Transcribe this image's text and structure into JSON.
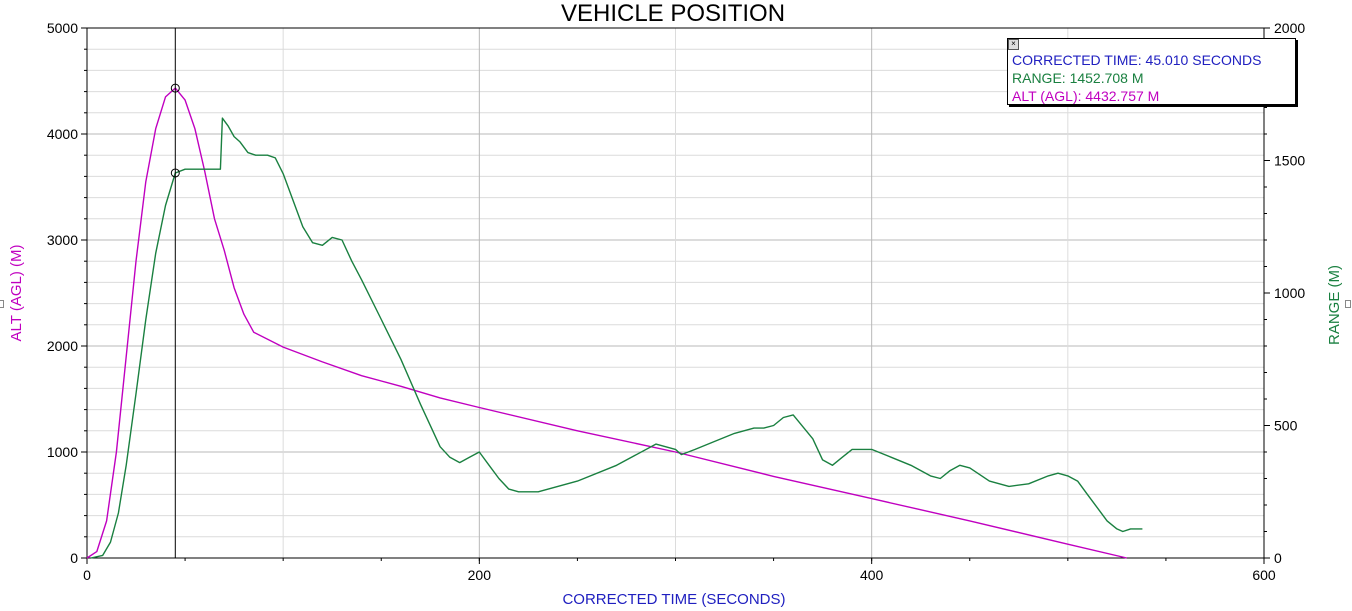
{
  "chart_data": {
    "type": "line",
    "title": "VEHICLE POSITION",
    "xlabel": "CORRECTED TIME (SECONDS)",
    "ylabel": "ALT (AGL) (M)",
    "y2label": "RANGE (M)",
    "xlim": [
      0,
      600
    ],
    "ylim": [
      0,
      5000
    ],
    "y2lim": [
      0,
      2000
    ],
    "x_ticks": [
      "0",
      "200",
      "400",
      "600"
    ],
    "y_ticks": [
      "0",
      "1000",
      "2000",
      "3000",
      "4000",
      "5000"
    ],
    "y2_ticks": [
      "0",
      "500",
      "1000",
      "1500",
      "2000"
    ],
    "grid": true,
    "cursor_x": 45.01,
    "series": [
      {
        "name": "ALT (AGL) (M)",
        "axis": "left",
        "color": "#c000c0",
        "x": [
          0,
          5,
          10,
          15,
          20,
          25,
          30,
          35,
          40,
          45,
          50,
          55,
          60,
          65,
          70,
          75,
          80,
          85,
          100,
          120,
          140,
          160,
          180,
          200,
          250,
          300,
          350,
          400,
          450,
          500,
          530
        ],
        "y": [
          0,
          60,
          350,
          1000,
          1900,
          2800,
          3550,
          4050,
          4350,
          4433,
          4320,
          4050,
          3650,
          3200,
          2900,
          2550,
          2300,
          2130,
          1990,
          1850,
          1720,
          1620,
          1510,
          1420,
          1200,
          1000,
          770,
          560,
          350,
          130,
          0
        ]
      },
      {
        "name": "RANGE (M)",
        "axis": "right",
        "color": "#1a8040",
        "x": [
          2,
          8,
          12,
          16,
          20,
          25,
          30,
          35,
          40,
          45.01,
          50,
          55,
          60,
          68,
          69,
          70,
          72,
          75,
          78,
          82,
          86,
          92,
          96,
          100,
          105,
          110,
          115,
          120,
          125,
          130,
          135,
          140,
          150,
          160,
          170,
          180,
          185,
          190,
          195,
          200,
          205,
          210,
          215,
          220,
          230,
          250,
          270,
          290,
          300,
          303,
          310,
          320,
          330,
          340,
          345,
          350,
          355,
          360,
          370,
          375,
          380,
          385,
          390,
          400,
          410,
          420,
          430,
          435,
          440,
          445,
          450,
          460,
          470,
          480,
          490,
          495,
          500,
          505,
          510,
          520,
          525,
          528,
          532,
          538
        ],
        "y": [
          0,
          10,
          60,
          170,
          350,
          620,
          900,
          1150,
          1330,
          1453,
          1467,
          1467,
          1467,
          1467,
          1660,
          1650,
          1630,
          1590,
          1570,
          1530,
          1520,
          1520,
          1510,
          1450,
          1350,
          1250,
          1190,
          1180,
          1210,
          1200,
          1120,
          1050,
          900,
          750,
          580,
          420,
          380,
          360,
          380,
          400,
          350,
          300,
          260,
          250,
          250,
          290,
          350,
          430,
          410,
          390,
          410,
          440,
          470,
          490,
          490,
          500,
          530,
          540,
          450,
          370,
          350,
          380,
          410,
          410,
          380,
          350,
          310,
          300,
          330,
          350,
          340,
          290,
          270,
          280,
          310,
          320,
          310,
          290,
          240,
          140,
          110,
          100,
          110,
          110
        ]
      }
    ]
  },
  "readout": {
    "close_glyph": "×",
    "time": "CORRECTED TIME: 45.010 SECONDS",
    "range": "RANGE: 1452.708 M",
    "alt": "ALT (AGL): 4432.757 M"
  },
  "colors": {
    "alt": "#c000c0",
    "range": "#1a8040",
    "time": "#2020c0",
    "grid_major": "#b8b8b8",
    "grid_minor": "#dcdcdc"
  }
}
